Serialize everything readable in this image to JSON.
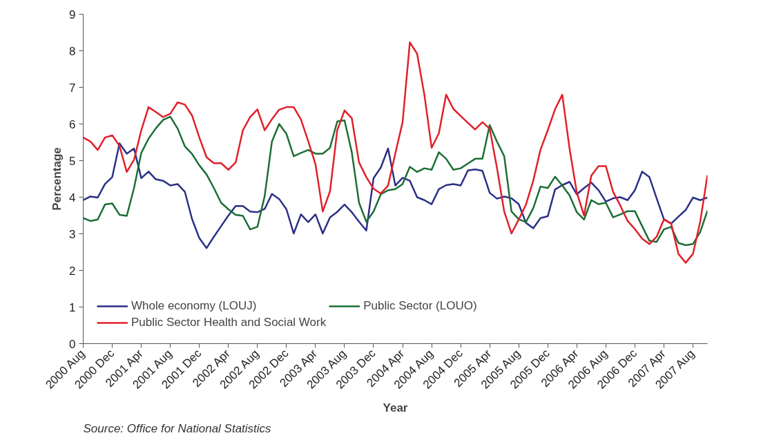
{
  "chart_data": {
    "type": "line",
    "xlabel": "Year",
    "ylabel": "Percentage",
    "categories": [
      "2000 Aug",
      null,
      null,
      null,
      "2000 Dec",
      null,
      null,
      null,
      "2001 Apr",
      null,
      null,
      null,
      "2001 Aug",
      null,
      null,
      null,
      "2001 Dec",
      null,
      null,
      null,
      "2002 Apr",
      null,
      null,
      null,
      "2002 Aug",
      null,
      null,
      null,
      "2002 Dec",
      null,
      null,
      null,
      "2003 Apr",
      null,
      null,
      null,
      "2003 Aug",
      null,
      null,
      null,
      "2003 Dec",
      null,
      null,
      null,
      "2004 Apr",
      null,
      null,
      null,
      "2004 Aug",
      null,
      null,
      null,
      "2004 Dec",
      null,
      null,
      null,
      "2005 Apr",
      null,
      null,
      null,
      "2005 Aug",
      null,
      null,
      null,
      "2005 Dec",
      null,
      null,
      null,
      "2006 Apr",
      null,
      null,
      null,
      "2006 Aug",
      null,
      null,
      null,
      "2006 Dec",
      null,
      null,
      null,
      "2007 Apr",
      null,
      null,
      null,
      "2007 Aug",
      null,
      null
    ],
    "series": [
      {
        "name": "Whole economy (LOUJ)",
        "color": "#2b2f86",
        "values": [
          3.92,
          4.02,
          3.99,
          4.36,
          4.55,
          5.47,
          5.19,
          5.33,
          4.52,
          4.7,
          4.49,
          4.45,
          4.32,
          4.36,
          4.15,
          3.4,
          2.88,
          2.61,
          2.92,
          3.21,
          3.5,
          3.76,
          3.76,
          3.61,
          3.59,
          3.68,
          4.09,
          3.95,
          3.67,
          3.01,
          3.53,
          3.32,
          3.53,
          3.01,
          3.45,
          3.6,
          3.8,
          3.59,
          3.33,
          3.09,
          4.52,
          4.81,
          5.33,
          4.32,
          4.53,
          4.45,
          4.0,
          3.92,
          3.81,
          4.22,
          4.33,
          4.36,
          4.32,
          4.73,
          4.76,
          4.72,
          4.12,
          3.96,
          4.02,
          3.97,
          3.81,
          3.3,
          3.15,
          3.43,
          3.48,
          4.21,
          4.33,
          4.42,
          4.08,
          4.25,
          4.4,
          4.19,
          3.88,
          3.97,
          4.0,
          3.92,
          4.19,
          4.7,
          4.55,
          3.97,
          3.4,
          3.28,
          3.47,
          3.65,
          3.99,
          3.92,
          3.99
        ]
      },
      {
        "name": "Public Sector (LOUO)",
        "color": "#1b6e35",
        "values": [
          3.43,
          3.35,
          3.39,
          3.8,
          3.83,
          3.52,
          3.49,
          4.25,
          5.21,
          5.6,
          5.88,
          6.11,
          6.2,
          5.88,
          5.39,
          5.18,
          4.87,
          4.62,
          4.25,
          3.85,
          3.67,
          3.52,
          3.49,
          3.12,
          3.19,
          4.03,
          5.52,
          6.0,
          5.73,
          5.12,
          5.21,
          5.29,
          5.19,
          5.19,
          5.35,
          6.07,
          6.1,
          5.23,
          3.85,
          3.33,
          3.61,
          4.08,
          4.19,
          4.22,
          4.36,
          4.83,
          4.69,
          4.79,
          4.75,
          5.23,
          5.05,
          4.75,
          4.79,
          4.92,
          5.05,
          5.05,
          5.97,
          5.52,
          5.12,
          3.61,
          3.4,
          3.32,
          3.7,
          4.29,
          4.25,
          4.56,
          4.32,
          4.05,
          3.59,
          3.39,
          3.92,
          3.81,
          3.85,
          3.45,
          3.53,
          3.62,
          3.62,
          3.21,
          2.81,
          2.78,
          3.12,
          3.19,
          2.75,
          2.69,
          2.72,
          3.05,
          3.63
        ]
      },
      {
        "name": "Public Sector Health and Social Work",
        "color": "#e0202a",
        "values": [
          5.63,
          5.52,
          5.29,
          5.63,
          5.69,
          5.4,
          4.69,
          5.02,
          5.83,
          6.46,
          6.33,
          6.19,
          6.28,
          6.59,
          6.53,
          6.23,
          5.63,
          5.09,
          4.93,
          4.93,
          4.75,
          4.95,
          5.83,
          6.19,
          6.4,
          5.83,
          6.13,
          6.39,
          6.46,
          6.46,
          6.12,
          5.53,
          4.9,
          3.61,
          4.16,
          5.83,
          6.37,
          6.16,
          4.95,
          4.55,
          4.23,
          4.1,
          4.32,
          5.2,
          6.05,
          8.23,
          7.92,
          6.8,
          5.35,
          5.75,
          6.8,
          6.41,
          6.22,
          6.03,
          5.85,
          6.05,
          5.87,
          4.8,
          3.61,
          3.01,
          3.39,
          3.8,
          4.45,
          5.3,
          5.83,
          6.4,
          6.8,
          5.33,
          4.13,
          3.5,
          4.59,
          4.85,
          4.85,
          4.15,
          3.77,
          3.35,
          3.13,
          2.87,
          2.72,
          2.92,
          3.39,
          3.28,
          2.45,
          2.21,
          2.45,
          3.33,
          4.6
        ]
      }
    ],
    "ylim": [
      0,
      9
    ],
    "yticks": [
      0,
      1,
      2,
      3,
      4,
      5,
      6,
      7,
      8,
      9
    ],
    "grid": false,
    "legend": "bottom left",
    "marker": "none",
    "line_style": "solid",
    "annotations": [
      "Source: Office for National Statistics"
    ]
  }
}
